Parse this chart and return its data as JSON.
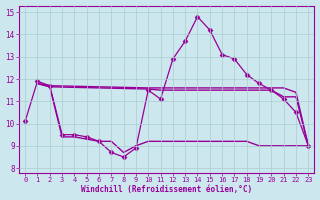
{
  "bg_color": "#cce8ee",
  "line_color": "#990099",
  "grid_color": "#aacccc",
  "xlabel": "Windchill (Refroidissement éolien,°C)",
  "xlabel_color": "#990099",
  "ylim": [
    7.8,
    15.3
  ],
  "xlim": [
    -0.5,
    23.5
  ],
  "yticks": [
    8,
    9,
    10,
    11,
    12,
    13,
    14,
    15
  ],
  "xticks": [
    0,
    1,
    2,
    3,
    4,
    5,
    6,
    7,
    8,
    9,
    10,
    11,
    12,
    13,
    14,
    15,
    16,
    17,
    18,
    19,
    20,
    21,
    22,
    23
  ],
  "series": [
    {
      "x": [
        0,
        1,
        2,
        3,
        4,
        5,
        6,
        7,
        8,
        9,
        10,
        11,
        12,
        13,
        14,
        15,
        16,
        17,
        18,
        19,
        20,
        21,
        22,
        23
      ],
      "y": [
        10.1,
        11.9,
        11.7,
        9.5,
        9.5,
        9.4,
        9.2,
        8.7,
        8.5,
        8.9,
        11.5,
        11.1,
        12.9,
        13.7,
        14.8,
        14.2,
        13.1,
        12.9,
        12.2,
        11.8,
        11.5,
        11.1,
        10.5,
        9.0
      ],
      "marker": "D",
      "markersize": 2.5,
      "linewidth": 0.9
    },
    {
      "x": [
        1,
        2,
        10,
        11,
        12,
        13,
        14,
        15,
        16,
        17,
        18,
        19,
        20,
        21,
        22,
        23
      ],
      "y": [
        11.8,
        11.7,
        11.6,
        11.6,
        11.6,
        11.6,
        11.6,
        11.6,
        11.6,
        11.6,
        11.6,
        11.6,
        11.6,
        11.6,
        11.4,
        9.0
      ],
      "marker": null,
      "markersize": 0,
      "linewidth": 1.0
    },
    {
      "x": [
        1,
        2,
        10,
        11,
        12,
        13,
        14,
        15,
        16,
        17,
        18,
        19,
        20,
        21,
        22,
        23
      ],
      "y": [
        11.8,
        11.65,
        11.55,
        11.5,
        11.5,
        11.5,
        11.5,
        11.5,
        11.5,
        11.5,
        11.5,
        11.5,
        11.5,
        11.2,
        11.2,
        9.0
      ],
      "marker": null,
      "markersize": 0,
      "linewidth": 1.0
    },
    {
      "x": [
        1,
        2,
        3,
        4,
        5,
        6,
        7,
        8,
        9,
        10,
        11,
        12,
        13,
        14,
        15,
        16,
        17,
        18,
        19,
        20,
        21,
        22,
        23
      ],
      "y": [
        11.8,
        11.65,
        9.4,
        9.4,
        9.3,
        9.2,
        9.2,
        8.7,
        9.0,
        9.2,
        9.2,
        9.2,
        9.2,
        9.2,
        9.2,
        9.2,
        9.2,
        9.2,
        9.0,
        9.0,
        9.0,
        9.0,
        9.0
      ],
      "marker": null,
      "markersize": 0,
      "linewidth": 1.0
    }
  ]
}
